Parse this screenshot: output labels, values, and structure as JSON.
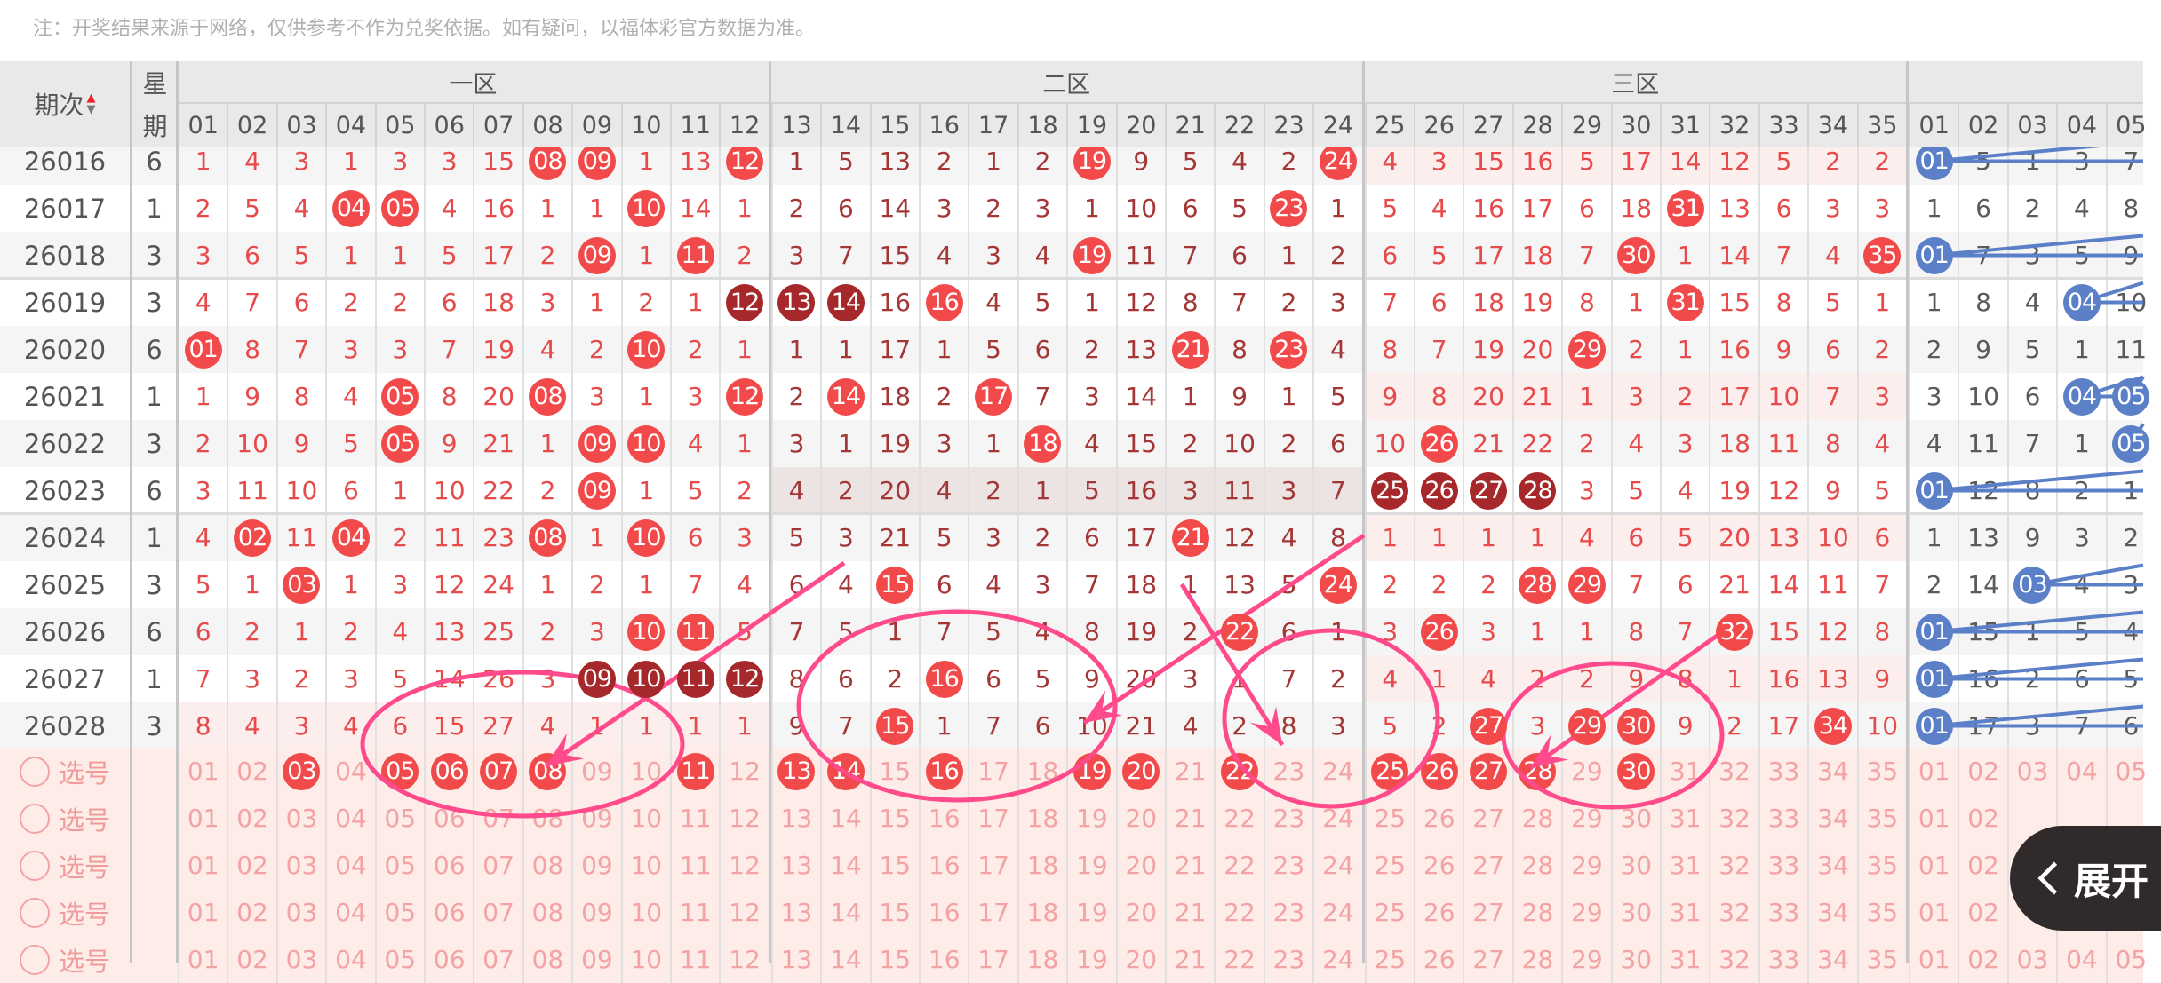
{
  "note": "注：开奖结果来源于网络，仅供参考不作为兑奖依据。如有疑问，以福体彩官方数据为准。",
  "header": {
    "issue_label": "期次",
    "weekday_label_top": "星",
    "weekday_label_bottom": "期",
    "zones": [
      {
        "title": "一区",
        "numbers": [
          "01",
          "02",
          "03",
          "04",
          "05",
          "06",
          "07",
          "08",
          "09",
          "10",
          "11",
          "12"
        ]
      },
      {
        "title": "二区",
        "numbers": [
          "13",
          "14",
          "15",
          "16",
          "17",
          "18",
          "19",
          "20",
          "21",
          "22",
          "23",
          "24"
        ]
      },
      {
        "title": "三区",
        "numbers": [
          "25",
          "26",
          "27",
          "28",
          "29",
          "30",
          "31",
          "32",
          "33",
          "34",
          "35"
        ]
      },
      {
        "title": "",
        "numbers": [
          "01",
          "02",
          "03",
          "04",
          "05"
        ]
      }
    ]
  },
  "colors": {
    "ball_red": "#f24a4a",
    "ball_dark": "#a6282a",
    "ball_blue": "#5b80c8",
    "zone_text_light": "#e64a4a",
    "zone_text_dark": "#a43636",
    "blue_text": "#5a5a5a",
    "annotation": "#ff4b8b",
    "pick_text": "#f3a3a3",
    "pick_bg": "#fdece7"
  },
  "rows": [
    {
      "issue": "26016",
      "weekday": "6",
      "zone_bg": [
        null,
        null,
        "pink",
        null
      ],
      "zones": [
        [
          "1",
          "4",
          "3",
          "1",
          "3",
          "3",
          "15",
          {
            "v": "08",
            "c": "red"
          },
          {
            "v": "09",
            "c": "red"
          },
          "1",
          "13",
          {
            "v": "12",
            "c": "red"
          }
        ],
        [
          "1",
          "5",
          "13",
          "2",
          "1",
          "2",
          {
            "v": "19",
            "c": "red"
          },
          "9",
          "5",
          "4",
          "2",
          {
            "v": "24",
            "c": "red"
          }
        ],
        [
          "4",
          "3",
          "15",
          "16",
          "5",
          "17",
          "14",
          "12",
          "5",
          "2",
          "2"
        ],
        [
          {
            "v": "01",
            "c": "blue"
          },
          "5",
          "1",
          "3",
          "7"
        ]
      ]
    },
    {
      "issue": "26017",
      "weekday": "1",
      "zone_bg": [
        null,
        null,
        null,
        null
      ],
      "zones": [
        [
          "2",
          "5",
          "4",
          {
            "v": "04",
            "c": "red"
          },
          {
            "v": "05",
            "c": "red"
          },
          "4",
          "16",
          "1",
          "1",
          {
            "v": "10",
            "c": "red"
          },
          "14",
          "1"
        ],
        [
          "2",
          "6",
          "14",
          "3",
          "2",
          "3",
          "1",
          "10",
          "6",
          "5",
          {
            "v": "23",
            "c": "red"
          },
          "1"
        ],
        [
          "5",
          "4",
          "16",
          "17",
          "6",
          "18",
          {
            "v": "31",
            "c": "red"
          },
          "13",
          "6",
          "3",
          "3"
        ],
        [
          "1",
          "6",
          "2",
          "4",
          "8"
        ]
      ]
    },
    {
      "issue": "26018",
      "weekday": "3",
      "zone_bg": [
        null,
        null,
        null,
        null
      ],
      "zones": [
        [
          "3",
          "6",
          "5",
          "1",
          "1",
          "5",
          "17",
          "2",
          {
            "v": "09",
            "c": "red"
          },
          "1",
          {
            "v": "11",
            "c": "red"
          },
          "2"
        ],
        [
          "3",
          "7",
          "15",
          "4",
          "3",
          "4",
          {
            "v": "19",
            "c": "red"
          },
          "11",
          "7",
          "6",
          "1",
          "2"
        ],
        [
          "6",
          "5",
          "17",
          "18",
          "7",
          {
            "v": "30",
            "c": "red"
          },
          "1",
          "14",
          "7",
          "4",
          {
            "v": "35",
            "c": "red"
          }
        ],
        [
          {
            "v": "01",
            "c": "blue"
          },
          "7",
          "3",
          "5",
          "9"
        ]
      ]
    },
    {
      "issue": "26019",
      "weekday": "3",
      "zone_bg": [
        null,
        null,
        null,
        null
      ],
      "zones": [
        [
          "4",
          "7",
          "6",
          "2",
          "2",
          "6",
          "18",
          "3",
          "1",
          "2",
          "1",
          {
            "v": "12",
            "c": "dark"
          }
        ],
        [
          {
            "v": "13",
            "c": "dark"
          },
          {
            "v": "14",
            "c": "dark"
          },
          "16",
          {
            "v": "16",
            "c": "red"
          },
          "4",
          "5",
          "1",
          "12",
          "8",
          "7",
          "2",
          "3"
        ],
        [
          "7",
          "6",
          "18",
          "19",
          "8",
          "1",
          {
            "v": "31",
            "c": "red"
          },
          "15",
          "8",
          "5",
          "1"
        ],
        [
          "1",
          "8",
          "4",
          {
            "v": "04",
            "c": "blue"
          },
          "10"
        ]
      ]
    },
    {
      "issue": "26020",
      "weekday": "6",
      "zone_bg": [
        null,
        null,
        null,
        null
      ],
      "zones": [
        [
          {
            "v": "01",
            "c": "red"
          },
          "8",
          "7",
          "3",
          "3",
          "7",
          "19",
          "4",
          "2",
          {
            "v": "10",
            "c": "red"
          },
          "2",
          "1"
        ],
        [
          "1",
          "1",
          "17",
          "1",
          "5",
          "6",
          "2",
          "13",
          {
            "v": "21",
            "c": "red"
          },
          "8",
          {
            "v": "23",
            "c": "red"
          },
          "4"
        ],
        [
          "8",
          "7",
          "19",
          "20",
          {
            "v": "29",
            "c": "red"
          },
          "2",
          "1",
          "16",
          "9",
          "6",
          "2"
        ],
        [
          "2",
          "9",
          "5",
          "1",
          "11"
        ]
      ]
    },
    {
      "issue": "26021",
      "weekday": "1",
      "zone_bg": [
        null,
        null,
        "pink",
        null
      ],
      "zones": [
        [
          "1",
          "9",
          "8",
          "4",
          {
            "v": "05",
            "c": "red"
          },
          "8",
          "20",
          {
            "v": "08",
            "c": "red"
          },
          "3",
          "1",
          "3",
          {
            "v": "12",
            "c": "red"
          }
        ],
        [
          "2",
          {
            "v": "14",
            "c": "red"
          },
          "18",
          "2",
          {
            "v": "17",
            "c": "red"
          },
          "7",
          "3",
          "14",
          "1",
          "9",
          "1",
          "5"
        ],
        [
          "9",
          "8",
          "20",
          "21",
          "1",
          "3",
          "2",
          "17",
          "10",
          "7",
          "3"
        ],
        [
          "3",
          "10",
          "6",
          {
            "v": "04",
            "c": "blue"
          },
          {
            "v": "05",
            "c": "blue"
          }
        ]
      ]
    },
    {
      "issue": "26022",
      "weekday": "3",
      "zone_bg": [
        null,
        null,
        null,
        null
      ],
      "zones": [
        [
          "2",
          "10",
          "9",
          "5",
          {
            "v": "05",
            "c": "red"
          },
          "9",
          "21",
          "1",
          {
            "v": "09",
            "c": "red"
          },
          {
            "v": "10",
            "c": "red"
          },
          "4",
          "1"
        ],
        [
          "3",
          "1",
          "19",
          "3",
          "1",
          {
            "v": "18",
            "c": "red"
          },
          "4",
          "15",
          "2",
          "10",
          "2",
          "6"
        ],
        [
          "10",
          {
            "v": "26",
            "c": "red"
          },
          "21",
          "22",
          "2",
          "4",
          "3",
          "18",
          "11",
          "8",
          "4"
        ],
        [
          "4",
          "11",
          "7",
          "1",
          {
            "v": "05",
            "c": "blue"
          }
        ]
      ]
    },
    {
      "issue": "26023",
      "weekday": "6",
      "zone_bg": [
        null,
        "mauve",
        null,
        null
      ],
      "zones": [
        [
          "3",
          "11",
          "10",
          "6",
          "1",
          "10",
          "22",
          "2",
          {
            "v": "09",
            "c": "red"
          },
          "1",
          "5",
          "2"
        ],
        [
          "4",
          "2",
          "20",
          "4",
          "2",
          "1",
          "5",
          "16",
          "3",
          "11",
          "3",
          "7"
        ],
        [
          {
            "v": "25",
            "c": "dark"
          },
          {
            "v": "26",
            "c": "dark"
          },
          {
            "v": "27",
            "c": "dark"
          },
          {
            "v": "28",
            "c": "dark"
          },
          "3",
          "5",
          "4",
          "19",
          "12",
          "9",
          "5"
        ],
        [
          {
            "v": "01",
            "c": "blue"
          },
          "12",
          "8",
          "2",
          "1"
        ]
      ]
    },
    {
      "issue": "26024",
      "weekday": "1",
      "zone_bg": [
        null,
        null,
        "pink",
        null
      ],
      "zones": [
        [
          "4",
          {
            "v": "02",
            "c": "red"
          },
          "11",
          {
            "v": "04",
            "c": "red"
          },
          "2",
          "11",
          "23",
          {
            "v": "08",
            "c": "red"
          },
          "1",
          {
            "v": "10",
            "c": "red"
          },
          "6",
          "3"
        ],
        [
          "5",
          "3",
          "21",
          "5",
          "3",
          "2",
          "6",
          "17",
          {
            "v": "21",
            "c": "red"
          },
          "12",
          "4",
          "8"
        ],
        [
          "1",
          "1",
          "1",
          "1",
          "4",
          "6",
          "5",
          "20",
          "13",
          "10",
          "6"
        ],
        [
          "1",
          "13",
          "9",
          "3",
          "2"
        ]
      ]
    },
    {
      "issue": "26025",
      "weekday": "3",
      "zone_bg": [
        null,
        null,
        null,
        null
      ],
      "zones": [
        [
          "5",
          "1",
          {
            "v": "03",
            "c": "red"
          },
          "1",
          "3",
          "12",
          "24",
          "1",
          "2",
          "1",
          "7",
          "4"
        ],
        [
          "6",
          "4",
          {
            "v": "15",
            "c": "red"
          },
          "6",
          "4",
          "3",
          "7",
          "18",
          "1",
          "13",
          "5",
          {
            "v": "24",
            "c": "red"
          }
        ],
        [
          "2",
          "2",
          "2",
          {
            "v": "28",
            "c": "red"
          },
          {
            "v": "29",
            "c": "red"
          },
          "7",
          "6",
          "21",
          "14",
          "11",
          "7"
        ],
        [
          "2",
          "14",
          {
            "v": "03",
            "c": "blue"
          },
          "4",
          "3"
        ]
      ]
    },
    {
      "issue": "26026",
      "weekday": "6",
      "zone_bg": [
        null,
        null,
        null,
        null
      ],
      "zones": [
        [
          "6",
          "2",
          "1",
          "2",
          "4",
          "13",
          "25",
          "2",
          "3",
          {
            "v": "10",
            "c": "red"
          },
          {
            "v": "11",
            "c": "red"
          },
          "5"
        ],
        [
          "7",
          "5",
          "1",
          "7",
          "5",
          "4",
          "8",
          "19",
          "2",
          {
            "v": "22",
            "c": "red"
          },
          "6",
          "1"
        ],
        [
          "3",
          {
            "v": "26",
            "c": "red"
          },
          "3",
          "1",
          "1",
          "8",
          "7",
          {
            "v": "32",
            "c": "red"
          },
          "15",
          "12",
          "8"
        ],
        [
          {
            "v": "01",
            "c": "blue"
          },
          "15",
          "1",
          "5",
          "4"
        ]
      ]
    },
    {
      "issue": "26027",
      "weekday": "1",
      "zone_bg": [
        null,
        null,
        "pink",
        null
      ],
      "zones": [
        [
          "7",
          "3",
          "2",
          "3",
          "5",
          "14",
          "26",
          "3",
          {
            "v": "09",
            "c": "dark"
          },
          {
            "v": "10",
            "c": "dark"
          },
          {
            "v": "11",
            "c": "dark"
          },
          {
            "v": "12",
            "c": "dark"
          }
        ],
        [
          "8",
          "6",
          "2",
          {
            "v": "16",
            "c": "red"
          },
          "6",
          "5",
          "9",
          "20",
          "3",
          "1",
          "7",
          "2"
        ],
        [
          "4",
          "1",
          "4",
          "2",
          "2",
          "9",
          "8",
          "1",
          "16",
          "13",
          "9"
        ],
        [
          {
            "v": "01",
            "c": "blue"
          },
          "16",
          "2",
          "6",
          "5"
        ]
      ]
    },
    {
      "issue": "26028",
      "weekday": "3",
      "zone_bg": [
        "pink",
        null,
        null,
        null
      ],
      "zones": [
        [
          "8",
          "4",
          "3",
          "4",
          "6",
          "15",
          "27",
          "4",
          "1",
          "1",
          "1",
          "1"
        ],
        [
          "9",
          "7",
          {
            "v": "15",
            "c": "red"
          },
          "1",
          "7",
          "6",
          "10",
          "21",
          "4",
          "2",
          "8",
          "3"
        ],
        [
          "5",
          "2",
          {
            "v": "27",
            "c": "red"
          },
          "3",
          {
            "v": "29",
            "c": "red"
          },
          {
            "v": "30",
            "c": "red"
          },
          "9",
          "2",
          "17",
          {
            "v": "34",
            "c": "red"
          },
          "10"
        ],
        [
          {
            "v": "01",
            "c": "blue"
          },
          "17",
          "3",
          "7",
          "6"
        ]
      ]
    }
  ],
  "picker": {
    "label": "选号",
    "row_count": 5,
    "selected": [
      [
        "03",
        "05",
        "06",
        "07",
        "08",
        "11",
        "13",
        "14",
        "16",
        "19",
        "20",
        "22",
        "25",
        "26",
        "27",
        "28",
        "30"
      ],
      [],
      [],
      [],
      []
    ]
  },
  "expand_button": {
    "label": "展开",
    "icon": "chevron-left-icon"
  }
}
